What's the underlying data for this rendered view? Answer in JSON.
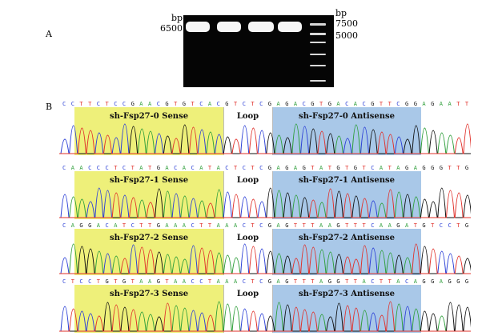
{
  "panel_a": {
    "letter": "A",
    "left_unit": "bp",
    "left_size": "6500",
    "right_unit": "bp",
    "ladder_7500": "7500",
    "ladder_5000": "5000"
  },
  "panel_b": {
    "letter": "B",
    "traces": [
      {
        "sequence": "CCTTCTCCGAACGTGTCACGTCTCGAGACGTGACACGTTCGGAGAATT",
        "sense_label": "sh-Fsp27-0 Sense",
        "loop_label": "Loop",
        "antisense_label": "sh-Fsp27-0 Antisense"
      },
      {
        "sequence": "CAACCCTCTATGACACATACTCTCGAGAGTATGTGTCATAGAGGGTTG",
        "sense_label": "sh-Fsp27-1 Sense",
        "loop_label": "Loop",
        "antisense_label": "sh-Fsp27-1 Antisense"
      },
      {
        "sequence": "CAGGACATCTTGAAACTTAAACTCGAGTTTAAGTTTCAAGATGTCCTG",
        "sense_label": "sh-Fsp27-2 Sense",
        "loop_label": "Loop",
        "antisense_label": "sh-Fsp27-2 Antisense"
      },
      {
        "sequence": "CTCCTGTGTAAGTAACCTAAACTCGAGTTTAGGTTACTTACAGGAGGG",
        "sense_label": "sh-Fsp27-3 Sense",
        "loop_label": "Loop",
        "antisense_label": "sh-Fsp27-3 Antisense"
      }
    ]
  },
  "colors": {
    "A": "#2e9e3a",
    "C": "#2b3fd6",
    "G": "#111111",
    "T": "#e0302a",
    "sense_highlight": "#eef07a",
    "antisense_highlight": "#a9c8e8"
  }
}
